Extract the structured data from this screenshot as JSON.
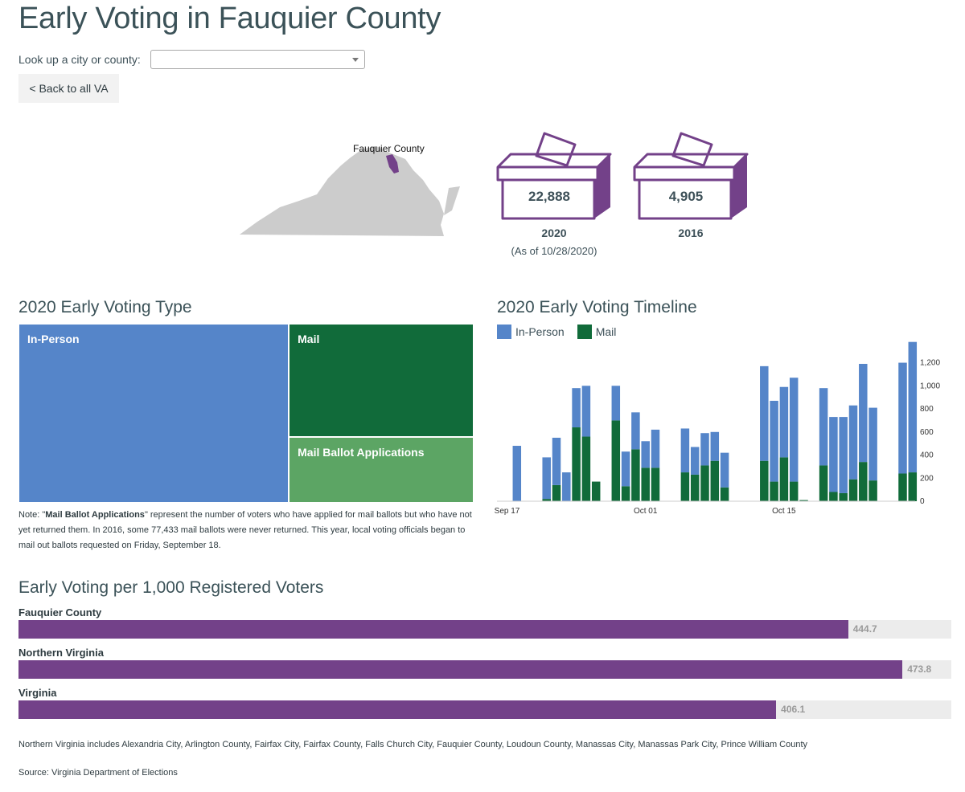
{
  "page": {
    "title": "Early Voting in Fauquier County",
    "lookup_label": "Look up a city or county:",
    "lookup_value": "",
    "back_label": "< Back to all VA"
  },
  "map": {
    "label": "Fauquier County",
    "state_color": "#cccccc",
    "highlight_color": "#734189"
  },
  "totals": [
    {
      "value": "22,888",
      "year": "2020",
      "sub": "(As of 10/28/2020)"
    },
    {
      "value": "4,905",
      "year": "2016",
      "sub": ""
    }
  ],
  "colors": {
    "accent": "#734189",
    "in_person": "#5585c9",
    "mail": "#116b3a",
    "mail_apps": "#5ca564",
    "text": "#3d5058"
  },
  "treemap": {
    "title": "2020 Early Voting Type",
    "note_bold": "Mail Ballot Applications",
    "note_before": "Note: \"",
    "note_after": "\" represent the number of voters who have applied for mail ballots but who have not yet returned them. In 2016, some 77,433 mail ballots were never returned. This year, local voting officials began to mail out ballots requested on Friday, September 18."
  },
  "timeline": {
    "title": "2020 Early Voting Timeline",
    "legend": [
      "In-Person",
      "Mail"
    ]
  },
  "per_capita": {
    "title": "Early Voting per 1,000 Registered Voters",
    "footnote": "Northern Virginia includes Alexandria City, Arlington County, Fairfax City, Fairfax County, Falls Church City, Fauquier County, Loudoun County, Manassas City, Manassas Park City, Prince William County",
    "source": "Source: Virginia Department of Elections"
  },
  "chart_data": [
    {
      "type": "treemap",
      "title": "2020 Early Voting Type",
      "categories": [
        "In-Person",
        "Mail",
        "Mail Ballot Applications"
      ],
      "values": [
        13600,
        5900,
        3400
      ]
    },
    {
      "type": "bar",
      "stacked": true,
      "title": "2020 Early Voting Timeline",
      "x_tick_labels": [
        "Sep 17",
        "Oct 01",
        "Oct 15"
      ],
      "x": [
        "Sep 18",
        "Sep 21",
        "Sep 22",
        "Sep 23",
        "Sep 24",
        "Sep 25",
        "Sep 26",
        "Sep 28",
        "Sep 29",
        "Sep 30",
        "Oct 01",
        "Oct 02",
        "Oct 05",
        "Oct 06",
        "Oct 07",
        "Oct 08",
        "Oct 09",
        "Oct 13",
        "Oct 14",
        "Oct 15",
        "Oct 16",
        "Oct 17",
        "Oct 19",
        "Oct 20",
        "Oct 21",
        "Oct 22",
        "Oct 23",
        "Oct 24",
        "Oct 26",
        "Oct 27",
        "Oct 28"
      ],
      "series": [
        {
          "name": "Mail",
          "values": [
            0,
            20,
            140,
            0,
            640,
            560,
            170,
            700,
            130,
            450,
            290,
            290,
            250,
            230,
            310,
            350,
            120,
            350,
            170,
            380,
            170,
            10,
            310,
            80,
            70,
            190,
            340,
            180,
            0,
            240,
            250
          ]
        },
        {
          "name": "In-Person",
          "values": [
            480,
            360,
            410,
            250,
            340,
            440,
            0,
            300,
            300,
            320,
            230,
            330,
            380,
            240,
            280,
            250,
            300,
            820,
            700,
            610,
            900,
            0,
            670,
            650,
            660,
            640,
            850,
            630,
            0,
            960,
            1130
          ]
        }
      ],
      "ylim": [
        0,
        1350
      ],
      "y_ticks": [
        0,
        200,
        400,
        600,
        800,
        "1,000",
        "1,200"
      ],
      "y_axis_position": "right",
      "legend_position": "top-left"
    },
    {
      "type": "bar",
      "orientation": "horizontal",
      "title": "Early Voting per 1,000 Registered Voters",
      "categories": [
        "Fauquier County",
        "Northern Virginia",
        "Virginia"
      ],
      "values": [
        444.7,
        473.8,
        406.1
      ],
      "labels": [
        "444.7",
        "473.8",
        "406.1"
      ],
      "xlim": [
        0,
        500
      ]
    }
  ]
}
